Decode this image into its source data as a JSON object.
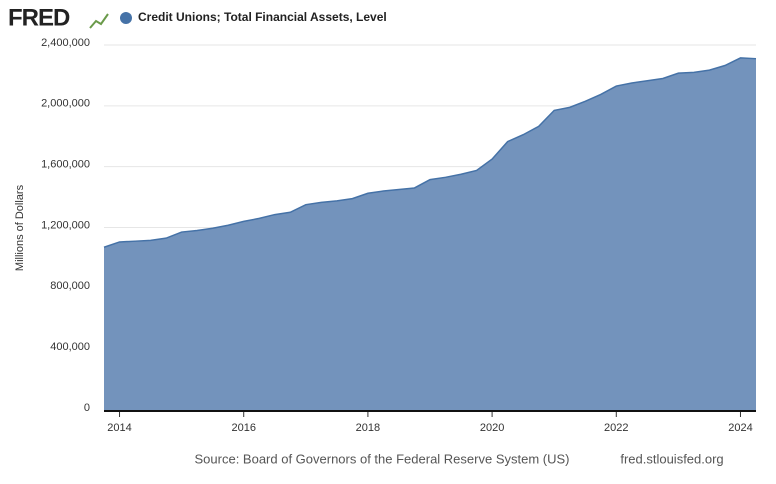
{
  "logo": "FRED",
  "chart_data": {
    "type": "area",
    "series": [
      {
        "name": "Credit Unions; Total Financial Assets, Level",
        "color": "#4572a7",
        "fill": "#7393bc",
        "values": [
          1070000,
          1105000,
          1110000,
          1115000,
          1130000,
          1170000,
          1180000,
          1195000,
          1215000,
          1240000,
          1260000,
          1285000,
          1300000,
          1350000,
          1365000,
          1375000,
          1390000,
          1425000,
          1440000,
          1450000,
          1460000,
          1515000,
          1530000,
          1550000,
          1575000,
          1650000,
          1765000,
          1810000,
          1865000,
          1970000,
          1990000,
          2030000,
          2075000,
          2130000,
          2150000,
          2165000,
          2180000,
          2215000,
          2220000,
          2235000,
          2265000,
          2315000,
          2310000
        ]
      }
    ],
    "x": [
      2013.75,
      2014,
      2014.25,
      2014.5,
      2014.75,
      2015,
      2015.25,
      2015.5,
      2015.75,
      2016,
      2016.25,
      2016.5,
      2016.75,
      2017,
      2017.25,
      2017.5,
      2017.75,
      2018,
      2018.25,
      2018.5,
      2018.75,
      2019,
      2019.25,
      2019.5,
      2019.75,
      2020,
      2020.25,
      2020.5,
      2020.75,
      2021,
      2021.25,
      2021.5,
      2021.75,
      2022,
      2022.25,
      2022.5,
      2022.75,
      2023,
      2023.25,
      2023.5,
      2023.75,
      2024,
      2024.25
    ],
    "xlim": [
      2013.75,
      2024.25
    ],
    "xticks": [
      2014,
      2016,
      2018,
      2020,
      2022,
      2024
    ],
    "ylim": [
      0,
      2400000
    ],
    "yticks": [
      0,
      {
        "value": 400000,
        "label": "400,000"
      },
      {
        "value": 800000,
        "label": "800,000"
      },
      {
        "value": 1200000,
        "label": "1,200,000"
      },
      {
        "value": 1600000,
        "label": "1,600,000"
      },
      {
        "value": 2000000,
        "label": "2,000,000"
      },
      {
        "value": 2400000,
        "label": "2,400,000"
      }
    ],
    "ylabel": "Millions of Dollars",
    "grid": true,
    "source": "Source: Board of Governors of the Federal Reserve System (US)",
    "site": "fred.stlouisfed.org"
  }
}
